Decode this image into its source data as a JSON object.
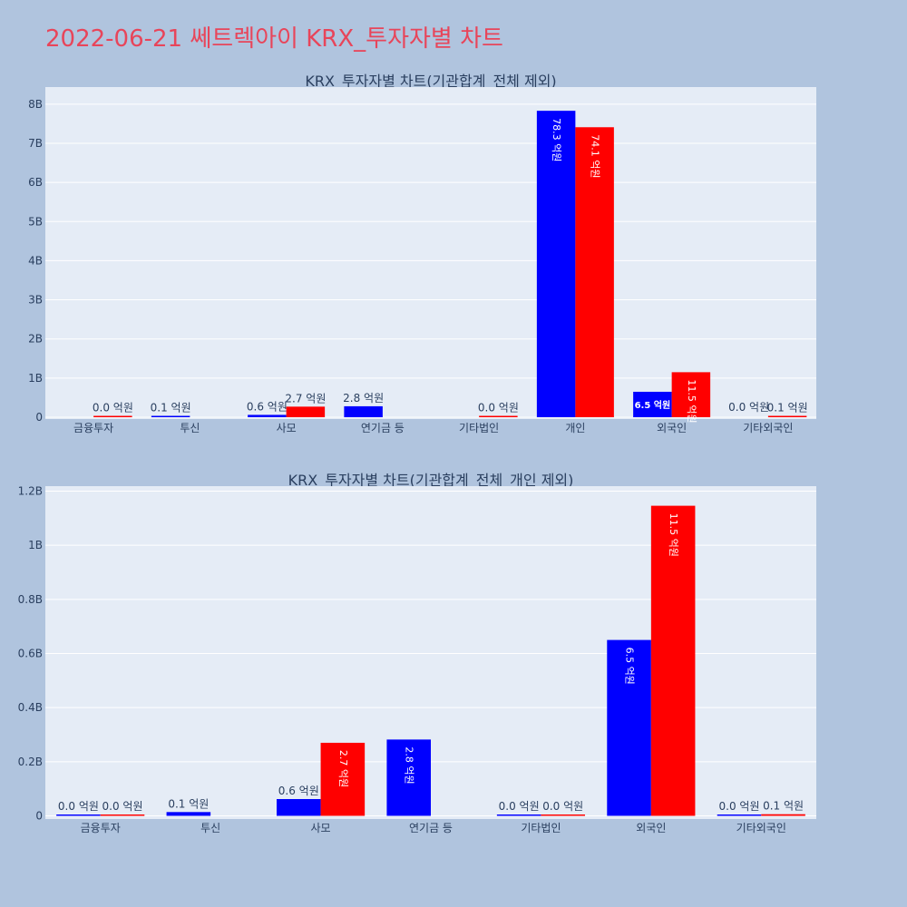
{
  "page_title": "2022-06-21 쎄트렉아이 KRX_투자자별 차트",
  "colors": {
    "buy": "#0000ff",
    "sell": "#ff0000",
    "background": "#b0c4de",
    "plot_bg": "#e5ecf6",
    "title": "#e8455a"
  },
  "chart_data": [
    {
      "type": "bar",
      "title": "KRX_투자자별 차트(기관합계_전체 제외)",
      "xlabel": "",
      "ylabel": "",
      "categories": [
        "금융투자",
        "투신",
        "사모",
        "연기금 등",
        "기타법인",
        "개인",
        "외국인",
        "기타외국인"
      ],
      "ylim": [
        0,
        8.1
      ],
      "yticks": [
        0,
        1,
        2,
        3,
        4,
        5,
        6,
        7,
        8
      ],
      "ytick_labels": [
        "0",
        "1B",
        "2B",
        "3B",
        "4B",
        "5B",
        "6B",
        "7B",
        "8B"
      ],
      "grid": true,
      "series": [
        {
          "color": "#0000ff",
          "values": [
            null,
            0.01,
            0.06,
            0.28,
            null,
            7.83,
            0.65,
            null
          ],
          "labels": [
            "",
            "0.1 억원",
            "0.6 억원",
            "2.8 억원",
            "",
            "78.3 억원",
            "6.5 억원",
            ""
          ]
        },
        {
          "color": "#ff0000",
          "values": [
            0.0,
            null,
            0.27,
            null,
            0.0,
            7.41,
            1.15,
            0.01
          ],
          "labels": [
            "0.0 억원",
            "",
            "2.7 억원",
            "",
            "0.0 억원",
            "74.1 억원",
            "11.5 억원",
            "0.1 억원"
          ],
          "extra_labels": [
            "",
            "",
            "",
            "",
            "",
            "",
            "",
            "0.0 억원"
          ]
        }
      ]
    },
    {
      "type": "bar",
      "title": "KRX_투자자별 차트(기관합계_전체_개인 제외)",
      "xlabel": "",
      "ylabel": "",
      "categories": [
        "금융투자",
        "투신",
        "사모",
        "연기금 등",
        "기타법인",
        "외국인",
        "기타외국인"
      ],
      "ylim": [
        0,
        1.2
      ],
      "yticks": [
        0,
        0.2,
        0.4,
        0.6,
        0.8,
        1.0,
        1.2
      ],
      "ytick_labels": [
        "0",
        "0.2B",
        "0.4B",
        "0.6B",
        "0.8B",
        "1B",
        "1.2B"
      ],
      "grid": true,
      "series": [
        {
          "color": "#0000ff",
          "values": [
            0.0,
            0.014,
            0.062,
            0.282,
            0.0,
            0.65,
            0.0
          ],
          "labels": [
            "0.0 억원",
            "0.1 억원",
            "0.6 억원",
            "2.8 억원",
            "0.0 억원",
            "6.5 억원",
            "0.0 억원"
          ]
        },
        {
          "color": "#ff0000",
          "values": [
            0.0,
            null,
            0.27,
            null,
            0.0,
            1.146,
            0.006
          ],
          "labels": [
            "0.0 억원",
            "",
            "2.7 억원",
            "",
            "0.0 억원",
            "11.5 억원",
            "0.1 억원"
          ]
        }
      ]
    }
  ]
}
